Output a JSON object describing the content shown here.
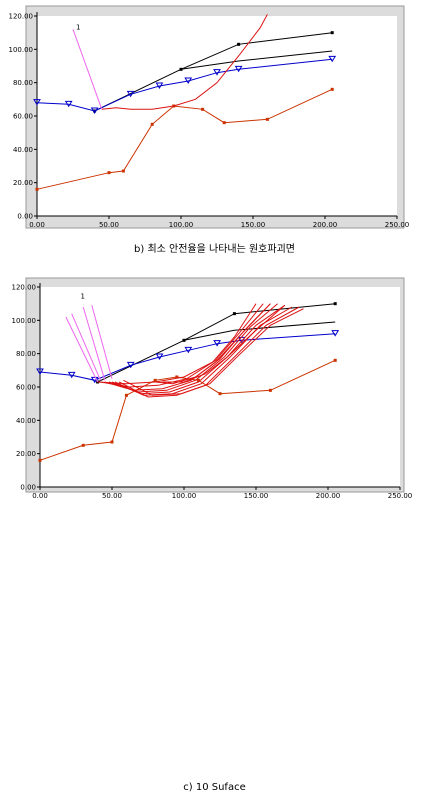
{
  "chart_data": [
    {
      "type": "line",
      "caption": "b) 최소 안전율을 나타내는 원호파괴면",
      "xlim": [
        0,
        250
      ],
      "ylim": [
        0,
        120
      ],
      "x_ticks": [
        "0.00",
        "50.00",
        "100.00",
        "150.00",
        "200.00",
        "250.00"
      ],
      "y_ticks": [
        "0.00",
        "20.00",
        "40.00",
        "60.00",
        "80.00",
        "100.00",
        "120.00"
      ],
      "grid": false,
      "colors": {
        "black": "#000000",
        "blue": "#0000cc",
        "brown": "#cc3300",
        "red": "#dd1111",
        "pink": "#ee66ee",
        "plot_bg": "#ffffff",
        "frame_bg": "#dcdcdc"
      },
      "annotation": "1",
      "series": [
        {
          "color": "black",
          "marker": "square",
          "x": [
            40,
            100,
            140,
            205
          ],
          "y": [
            63,
            88,
            103,
            110
          ]
        },
        {
          "color": "black",
          "marker": "none",
          "x": [
            100,
            140,
            205
          ],
          "y": [
            88,
            93,
            99
          ]
        },
        {
          "color": "blue",
          "marker": "triangle",
          "x": [
            0,
            22,
            40,
            65,
            85,
            105,
            125,
            140,
            205
          ],
          "y": [
            68,
            67,
            63,
            73,
            78,
            81,
            86,
            88,
            94
          ]
        },
        {
          "color": "brown",
          "marker": "square",
          "x": [
            0,
            50,
            60,
            80,
            95,
            115,
            130,
            160,
            205
          ],
          "y": [
            16,
            26,
            27,
            55,
            66,
            64,
            56,
            58,
            76
          ]
        },
        {
          "color": "red",
          "marker": "none",
          "x": [
            45,
            55,
            65,
            80,
            95,
            110,
            125,
            140,
            155,
            160
          ],
          "y": [
            64,
            65,
            64,
            64,
            66,
            70,
            80,
            96,
            113,
            121
          ]
        },
        {
          "color": "pink",
          "marker": "none",
          "x": [
            25,
            45
          ],
          "y": [
            112,
            64
          ]
        }
      ]
    },
    {
      "type": "line",
      "caption": "c) 10 Suface",
      "xlim": [
        0,
        250
      ],
      "ylim": [
        0,
        120
      ],
      "x_ticks": [
        "0.00",
        "50.00",
        "100.00",
        "150.00",
        "200.00",
        "250.00"
      ],
      "y_ticks": [
        "0.00",
        "20.00",
        "40.00",
        "60.00",
        "80.00",
        "100.00",
        "120.00"
      ],
      "grid": false,
      "colors": {
        "black": "#000000",
        "blue": "#0000cc",
        "brown": "#cc3300",
        "red": "#dd1111",
        "pink": "#ee66ee",
        "plot_bg": "#ffffff",
        "frame_bg": "#dcdcdc"
      },
      "annotation": "1",
      "series": [
        {
          "color": "black",
          "marker": "square",
          "x": [
            40,
            100,
            135,
            205
          ],
          "y": [
            63,
            88,
            104,
            110
          ]
        },
        {
          "color": "black",
          "marker": "none",
          "x": [
            100,
            135,
            205
          ],
          "y": [
            88,
            94,
            99
          ]
        },
        {
          "color": "blue",
          "marker": "triangle",
          "x": [
            0,
            22,
            38,
            63,
            83,
            103,
            123,
            140,
            205
          ],
          "y": [
            69,
            67,
            64,
            73,
            78,
            82,
            86,
            88,
            92
          ]
        },
        {
          "color": "brown",
          "marker": "square",
          "x": [
            0,
            30,
            50,
            60,
            80,
            95,
            110,
            125,
            160,
            205
          ],
          "y": [
            16,
            25,
            27,
            55,
            64,
            66,
            64,
            56,
            58,
            76
          ]
        },
        {
          "color": "red",
          "marker": "none",
          "x": [
            40,
            60,
            80,
            100,
            120,
            135,
            150
          ],
          "y": [
            63,
            62,
            63,
            66,
            75,
            90,
            110
          ]
        },
        {
          "color": "red",
          "marker": "none",
          "x": [
            42,
            62,
            82,
            102,
            122,
            138,
            155
          ],
          "y": [
            63,
            60,
            61,
            65,
            76,
            92,
            110
          ]
        },
        {
          "color": "red",
          "marker": "none",
          "x": [
            45,
            65,
            85,
            105,
            125,
            142,
            160
          ],
          "y": [
            63,
            58,
            59,
            64,
            77,
            94,
            110
          ]
        },
        {
          "color": "red",
          "marker": "none",
          "x": [
            48,
            68,
            88,
            108,
            128,
            146,
            165
          ],
          "y": [
            63,
            57,
            58,
            64,
            78,
            96,
            110
          ]
        },
        {
          "color": "red",
          "marker": "none",
          "x": [
            50,
            70,
            90,
            110,
            130,
            150,
            170
          ],
          "y": [
            63,
            56,
            57,
            63,
            78,
            97,
            109
          ]
        },
        {
          "color": "red",
          "marker": "none",
          "x": [
            52,
            72,
            92,
            112,
            132,
            153,
            175
          ],
          "y": [
            63,
            55,
            56,
            62,
            78,
            97,
            108
          ]
        },
        {
          "color": "red",
          "marker": "none",
          "x": [
            55,
            75,
            95,
            115,
            135,
            157,
            180
          ],
          "y": [
            63,
            54,
            55,
            61,
            78,
            97,
            108
          ]
        },
        {
          "color": "red",
          "marker": "none",
          "x": [
            58,
            78,
            98,
            118,
            138,
            160,
            183
          ],
          "y": [
            64,
            55,
            56,
            62,
            79,
            97,
            107
          ]
        },
        {
          "color": "red",
          "marker": "none",
          "x": [
            80,
            92,
            108,
            122,
            140,
            160
          ],
          "y": [
            63,
            62,
            66,
            75,
            92,
            110
          ]
        },
        {
          "color": "red",
          "marker": "none",
          "x": [
            85,
            100,
            115,
            130,
            150,
            170
          ],
          "y": [
            63,
            63,
            68,
            78,
            94,
            109
          ]
        },
        {
          "color": "pink",
          "marker": "none",
          "x": [
            18,
            40
          ],
          "y": [
            102,
            63
          ]
        },
        {
          "color": "pink",
          "marker": "none",
          "x": [
            22,
            42
          ],
          "y": [
            104,
            64
          ]
        },
        {
          "color": "pink",
          "marker": "none",
          "x": [
            30,
            45
          ],
          "y": [
            108,
            64
          ]
        },
        {
          "color": "pink",
          "marker": "none",
          "x": [
            36,
            50
          ],
          "y": [
            109,
            65
          ]
        }
      ]
    }
  ]
}
